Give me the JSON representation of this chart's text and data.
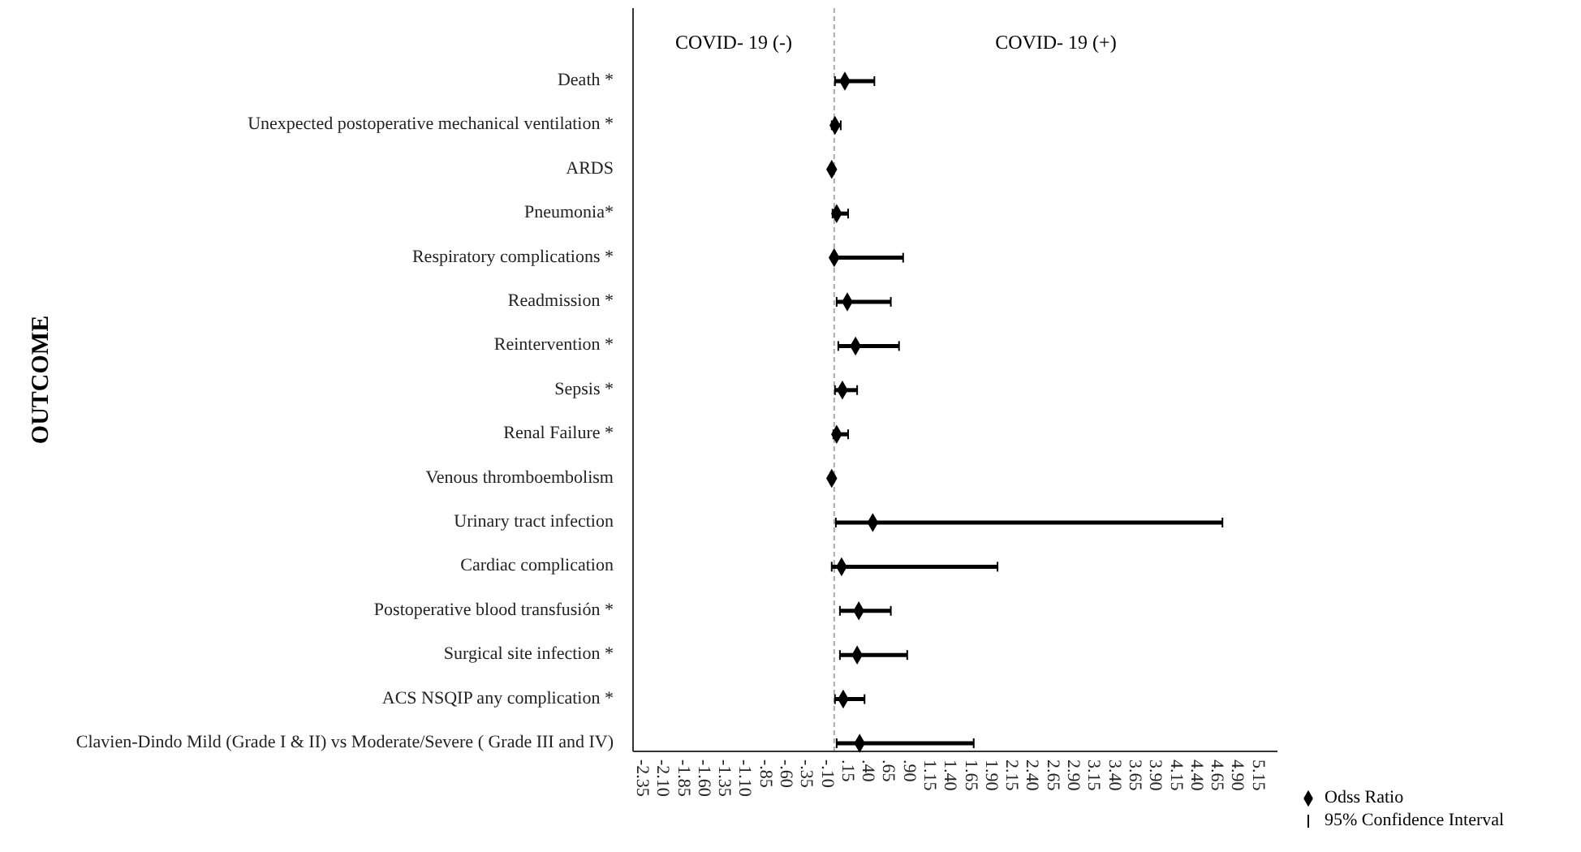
{
  "chart_data": {
    "type": "scatter",
    "orientation": "horizontal",
    "ylabel": "OUTCOME",
    "marker": "diamond",
    "legend": "bottom right",
    "categories": [
      "Death *",
      "Unexpected postoperative mechanical ventilation *",
      "ARDS",
      "Pneumonia*",
      "Respiratory complications *",
      "Readmission *",
      "Reintervention *",
      "Sepsis *",
      "Renal Failure *",
      "Venous thromboembolism",
      "Urinary tract infection",
      "Cardiac complication",
      "Postoperative blood transfusión *",
      "Surgical site infection *",
      "ACS NSQIP any complication *",
      "Clavien-Dindo Mild (Grade I & II) vs Moderate/Severe ( Grade III and IV)"
    ],
    "series": [
      {
        "name": "Odss Ratio",
        "color": "#000000",
        "values": [
          0.13,
          0.01,
          -0.03,
          0.03,
          0.0,
          0.16,
          0.26,
          0.1,
          0.03,
          -0.03,
          0.47,
          0.09,
          0.3,
          0.28,
          0.11,
          0.31
        ],
        "errors": [
          [
            0.01,
            0.49
          ],
          [
            -0.03,
            0.08
          ],
          null,
          [
            -0.02,
            0.17
          ],
          [
            0.0,
            0.84
          ],
          [
            0.03,
            0.69
          ],
          [
            0.05,
            0.79
          ],
          [
            0.01,
            0.28
          ],
          [
            -0.01,
            0.17
          ],
          null,
          [
            0.02,
            4.73
          ],
          [
            -0.03,
            1.99
          ],
          [
            0.07,
            0.69
          ],
          [
            0.07,
            0.89
          ],
          [
            0.01,
            0.37
          ],
          [
            0.03,
            1.7
          ]
        ]
      }
    ],
    "xlim": [
      -2.45,
      5.4
    ],
    "xticks": [
      -2.35,
      {
        "value": -2.1,
        "label": "-2.10"
      },
      -1.85,
      {
        "value": -1.6,
        "label": "-1.60"
      },
      -1.35,
      {
        "value": -1.1,
        "label": "-1.10"
      },
      {
        "value": -0.85,
        "label": "-.85"
      },
      {
        "value": -0.6,
        "label": "-.60"
      },
      {
        "value": -0.35,
        "label": "-.35"
      },
      {
        "value": -0.1,
        "label": "-.10"
      },
      {
        "value": 0.15,
        "label": ".15"
      },
      {
        "value": 0.4,
        "label": ".40"
      },
      {
        "value": 0.65,
        "label": ".65"
      },
      {
        "value": 0.9,
        "label": ".90"
      },
      1.15,
      {
        "value": 1.4,
        "label": "1.40"
      },
      1.65,
      {
        "value": 1.9,
        "label": "1.90"
      },
      2.15,
      {
        "value": 2.4,
        "label": "2.40"
      },
      2.65,
      {
        "value": 2.9,
        "label": "2.90"
      },
      3.15,
      {
        "value": 3.4,
        "label": "3.40"
      },
      3.65,
      {
        "value": 3.9,
        "label": "3.90"
      },
      4.15,
      {
        "value": 4.4,
        "label": "4.40"
      },
      4.65,
      {
        "value": 4.9,
        "label": "4.90"
      },
      5.15
    ],
    "ref_lines": [
      {
        "axis": "x",
        "value": 0,
        "color": "#aaaaaa",
        "line_style": "dashed"
      }
    ],
    "annotations": [
      "COVID- 19 (-)",
      "COVID- 19 (+)",
      "95% Confidence Interval"
    ]
  }
}
